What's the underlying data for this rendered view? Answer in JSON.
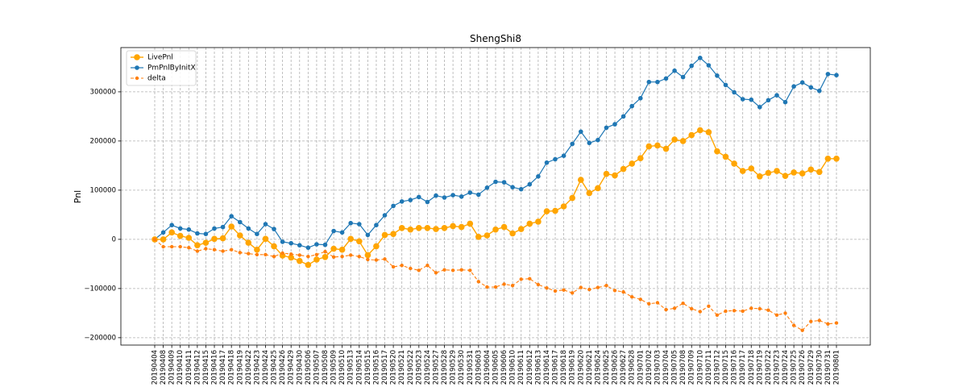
{
  "chart_data": {
    "type": "line",
    "title": "ShengShi8",
    "xlabel": "",
    "ylabel": "Pnl",
    "ylim": [
      -215000,
      390000
    ],
    "yticks": [
      -200000,
      -100000,
      0,
      100000,
      200000,
      300000
    ],
    "ytick_labels": [
      "−200000",
      "−100000",
      "0",
      "100000",
      "200000",
      "300000"
    ],
    "grid": true,
    "legend_position": "top-left",
    "categories": [
      "20190404",
      "20190408",
      "20190409",
      "20190410",
      "20190411",
      "20190412",
      "20190415",
      "20190416",
      "20190417",
      "20190418",
      "20190419",
      "20190422",
      "20190423",
      "20190424",
      "20190425",
      "20190426",
      "20190429",
      "20190430",
      "20190506",
      "20190507",
      "20190508",
      "20190509",
      "20190510",
      "20190513",
      "20190514",
      "20190515",
      "20190516",
      "20190517",
      "20190520",
      "20190521",
      "20190522",
      "20190523",
      "20190524",
      "20190527",
      "20190528",
      "20190529",
      "20190530",
      "20190531",
      "20190603",
      "20190604",
      "20190605",
      "20190606",
      "20190610",
      "20190611",
      "20190612",
      "20190613",
      "20190614",
      "20190617",
      "20190618",
      "20190619",
      "20190620",
      "20190621",
      "20190624",
      "20190625",
      "20190626",
      "20190627",
      "20190628",
      "20190701",
      "20190702",
      "20190703",
      "20190704",
      "20190705",
      "20190708",
      "20190709",
      "20190710",
      "20190711",
      "20190712",
      "20190715",
      "20190716",
      "20190717",
      "20190718",
      "20190719",
      "20190722",
      "20190723",
      "20190724",
      "20190725",
      "20190726",
      "20190729",
      "20190730",
      "20190731",
      "20190801"
    ],
    "series": [
      {
        "name": "PmPnlByInitX",
        "color": "#1f77b4",
        "style": "solid",
        "values": [
          0,
          14000,
          29000,
          22000,
          20000,
          12000,
          11000,
          22000,
          25000,
          47000,
          35000,
          22000,
          11000,
          31000,
          21000,
          -5000,
          -8000,
          -12000,
          -17000,
          -10000,
          -11000,
          17000,
          14000,
          33000,
          31000,
          9000,
          29000,
          49000,
          68000,
          77000,
          80000,
          86000,
          76000,
          89000,
          85000,
          90000,
          87000,
          95000,
          91000,
          105000,
          117000,
          116000,
          106000,
          102000,
          112000,
          128000,
          156000,
          163000,
          170000,
          194000,
          219000,
          196000,
          202000,
          227000,
          234000,
          250000,
          271000,
          287000,
          320000,
          320000,
          327000,
          343000,
          330000,
          353000,
          369000,
          354000,
          333000,
          314000,
          299000,
          285000,
          284000,
          269000,
          283000,
          293000,
          279000,
          311000,
          319000,
          309000,
          302000,
          336000,
          334000
        ]
      },
      {
        "name": "LivePnl",
        "color": "#ffa500",
        "style": "solid",
        "values": [
          0,
          0,
          14000,
          7000,
          3000,
          -12000,
          -7000,
          1000,
          2000,
          26000,
          8000,
          -7000,
          -21000,
          1000,
          -14000,
          -33000,
          -37000,
          -44000,
          -52000,
          -41000,
          -36000,
          -19000,
          -21000,
          1000,
          -4000,
          -32000,
          -14000,
          9000,
          11000,
          23000,
          20000,
          23000,
          23000,
          21000,
          23000,
          27000,
          25000,
          32000,
          5000,
          8000,
          20000,
          25000,
          12000,
          21000,
          32000,
          36000,
          57000,
          58000,
          67000,
          84000,
          121000,
          94000,
          104000,
          133000,
          130000,
          143000,
          154000,
          165000,
          189000,
          191000,
          184000,
          203000,
          200000,
          212000,
          222000,
          218000,
          179000,
          168000,
          154000,
          139000,
          144000,
          128000,
          135000,
          139000,
          129000,
          136000,
          134000,
          142000,
          137000,
          164000,
          164000
        ]
      },
      {
        "name": "delta",
        "color": "#ff7f0e",
        "style": "dashed",
        "values": [
          0,
          -15000,
          -15000,
          -15000,
          -17000,
          -24000,
          -19000,
          -21000,
          -24000,
          -21000,
          -27000,
          -29000,
          -31000,
          -31000,
          -35000,
          -28000,
          -30000,
          -32000,
          -35000,
          -31000,
          -25000,
          -36000,
          -35000,
          -32000,
          -35000,
          -41000,
          -42000,
          -40000,
          -56000,
          -53000,
          -59000,
          -63000,
          -53000,
          -68000,
          -62000,
          -63000,
          -62000,
          -63000,
          -86000,
          -97000,
          -97000,
          -91000,
          -94000,
          -81000,
          -80000,
          -92000,
          -99000,
          -105000,
          -103000,
          -109000,
          -98000,
          -102000,
          -98000,
          -94000,
          -104000,
          -107000,
          -117000,
          -122000,
          -131000,
          -129000,
          -143000,
          -140000,
          -130000,
          -141000,
          -147000,
          -136000,
          -154000,
          -146000,
          -145000,
          -146000,
          -140000,
          -141000,
          -144000,
          -154000,
          -150000,
          -175000,
          -185000,
          -167000,
          -165000,
          -172000,
          -170000
        ]
      }
    ],
    "legend": [
      "LivePnl",
      "PmPnlByInitX",
      "delta"
    ]
  }
}
